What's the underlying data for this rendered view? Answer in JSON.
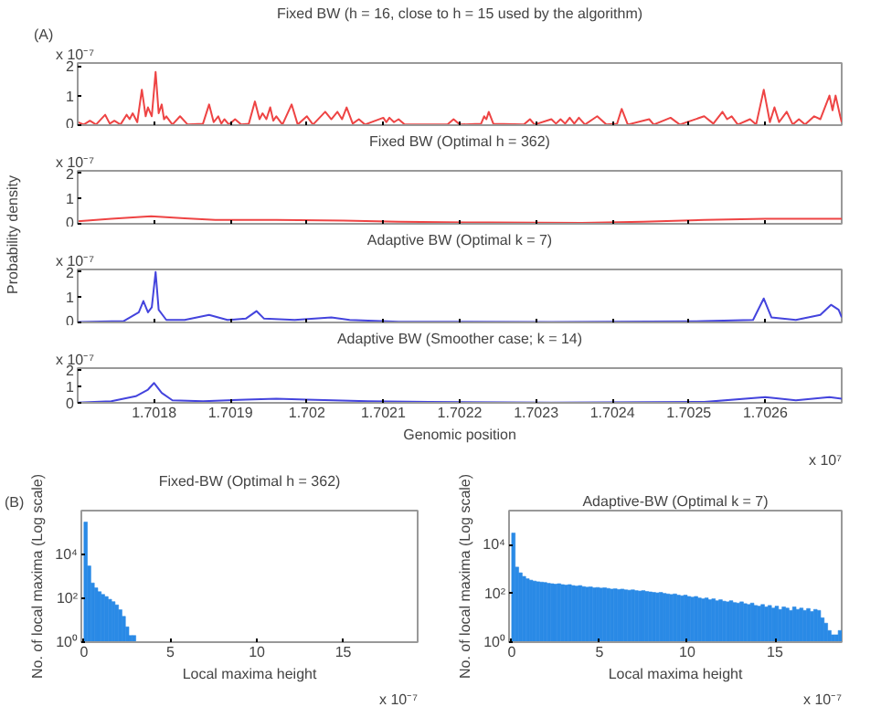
{
  "chart_data": [
    {
      "type": "line",
      "title": "Fixed BW (h = 16, close to h = 15 used by the algorithm)",
      "annotations": [
        "x 10⁻⁷",
        "(A)"
      ],
      "xlim": [
        1.7017,
        1.7027
      ],
      "xticks": [
        1.7018,
        1.7019,
        1.702,
        1.7021,
        1.7022,
        1.7023,
        1.7024,
        1.7025,
        1.7026
      ],
      "ylim": [
        0,
        2.1
      ],
      "yticks": [
        0,
        1,
        2
      ],
      "tick_labels": "y",
      "grid": false,
      "x": [
        1.7017,
        1.701708,
        1.701716,
        1.701724,
        1.701736,
        1.701742,
        1.701748,
        1.701756,
        1.701764,
        1.701768,
        1.701772,
        1.701778,
        1.701784,
        1.701789,
        1.701792,
        1.701797,
        1.701802,
        1.701806,
        1.70181,
        1.701813,
        1.701816,
        1.701824,
        1.701834,
        1.701844,
        1.701864,
        1.701872,
        1.701878,
        1.701884,
        1.701888,
        1.701892,
        1.701898,
        1.701906,
        1.701914,
        1.701924,
        1.701932,
        1.701938,
        1.701942,
        1.701947,
        1.701952,
        1.701956,
        1.70196,
        1.701968,
        1.70198,
        1.701988,
        1.702,
        1.702008,
        1.702024,
        1.702032,
        1.70204,
        1.702046,
        1.702052,
        1.70206,
        1.702068,
        1.702076,
        1.7021,
        1.702104,
        1.702108,
        1.702114,
        1.70212,
        1.702128,
        1.702184,
        1.702192,
        1.7022,
        1.702228,
        1.702232,
        1.702235,
        1.702238,
        1.702244,
        1.702284,
        1.702292,
        1.702298,
        1.70232,
        1.702326,
        1.702332,
        1.702338,
        1.702344,
        1.70235,
        1.702356,
        1.702364,
        1.70238,
        1.702392,
        1.702406,
        1.702412,
        1.70242,
        1.702448,
        1.702454,
        1.702476,
        1.702488,
        1.70252,
        1.702532,
        1.702544,
        1.70255,
        1.702556,
        1.702564,
        1.70258,
        1.702588,
        1.702598,
        1.702606,
        1.702612,
        1.702618,
        1.702628,
        1.702636,
        1.702644,
        1.702652,
        1.702664,
        1.702672,
        1.702684,
        1.702688,
        1.702692,
        1.702698,
        1.7027
      ],
      "series": [
        {
          "color": "#ee4444",
          "values": [
            0.1,
            0.02,
            0.15,
            0.02,
            0.35,
            0.05,
            0.15,
            0.02,
            0.35,
            0.2,
            0.4,
            0.1,
            1.2,
            0.3,
            0.6,
            0.3,
            1.8,
            0.4,
            0.7,
            0.2,
            0.3,
            0.02,
            0.3,
            0.02,
            0.05,
            0.7,
            0.1,
            0.3,
            0.05,
            0.2,
            0.02,
            0.2,
            0.02,
            0.05,
            0.8,
            0.2,
            0.4,
            0.2,
            0.6,
            0.15,
            0.3,
            0.02,
            0.7,
            0.02,
            0.3,
            0.02,
            0.45,
            0.2,
            0.45,
            0.2,
            0.6,
            0.05,
            0.2,
            0.02,
            0.25,
            0.1,
            0.25,
            0.1,
            0.2,
            0.02,
            0.02,
            0.2,
            0.02,
            0.05,
            0.3,
            0.2,
            0.45,
            0.05,
            0.02,
            0.2,
            0.02,
            0.2,
            0.05,
            0.2,
            0.05,
            0.25,
            0.05,
            0.25,
            0.02,
            0.3,
            0.02,
            0.05,
            0.55,
            0.02,
            0.2,
            0.02,
            0.25,
            0.02,
            0.3,
            0.05,
            0.45,
            0.2,
            0.3,
            0.02,
            0.2,
            0.02,
            1.2,
            0.1,
            0.6,
            0.1,
            0.45,
            0.02,
            0.2,
            0.02,
            0.3,
            0.2,
            1.0,
            0.5,
            1.0,
            0.3,
            0.1
          ]
        }
      ]
    },
    {
      "type": "line",
      "title": "Fixed BW (Optimal h = 362)",
      "ylabel": "Probability density",
      "annotations": [
        "x 10⁻⁷"
      ],
      "xlim": [
        1.7017,
        1.7027
      ],
      "xticks": [
        1.7018,
        1.7019,
        1.702,
        1.7021,
        1.7022,
        1.7023,
        1.7024,
        1.7025,
        1.7026
      ],
      "ylim": [
        0,
        2.1
      ],
      "yticks": [
        0,
        1,
        2
      ],
      "tick_labels": "y",
      "grid": false,
      "x": [
        1.7017,
        1.701744,
        1.701796,
        1.70184,
        1.70188,
        1.70196,
        1.702048,
        1.70212,
        1.70224,
        1.70236,
        1.70244,
        1.70252,
        1.7026,
        1.7027
      ],
      "series": [
        {
          "color": "#ee4444",
          "values": [
            0.1,
            0.2,
            0.3,
            0.22,
            0.15,
            0.15,
            0.13,
            0.08,
            0.05,
            0.04,
            0.08,
            0.15,
            0.2,
            0.2
          ]
        }
      ]
    },
    {
      "type": "line",
      "title": "Adaptive BW (Optimal k = 7)",
      "annotations": [
        "x 10⁻⁷"
      ],
      "xlim": [
        1.7017,
        1.7027
      ],
      "xticks": [
        1.7018,
        1.7019,
        1.702,
        1.7021,
        1.7022,
        1.7023,
        1.7024,
        1.7025,
        1.7026
      ],
      "ylim": [
        0,
        2.1
      ],
      "yticks": [
        0,
        1,
        2
      ],
      "tick_labels": "y",
      "grid": false,
      "x": [
        1.7017,
        1.70176,
        1.70178,
        1.701786,
        1.701792,
        1.701797,
        1.701802,
        1.701806,
        1.701816,
        1.70184,
        1.701872,
        1.701896,
        1.70192,
        1.701934,
        1.701944,
        1.701984,
        1.702032,
        1.702056,
        1.70212,
        1.70232,
        1.70252,
        1.702584,
        1.702598,
        1.702608,
        1.70264,
        1.702672,
        1.702686,
        1.702696,
        1.7027
      ],
      "series": [
        {
          "color": "#4444dd",
          "values": [
            0.02,
            0.05,
            0.4,
            0.85,
            0.4,
            0.6,
            2.0,
            0.5,
            0.1,
            0.1,
            0.3,
            0.1,
            0.15,
            0.45,
            0.15,
            0.1,
            0.2,
            0.1,
            0.03,
            0.02,
            0.05,
            0.1,
            0.95,
            0.2,
            0.1,
            0.3,
            0.7,
            0.5,
            0.2
          ]
        }
      ]
    },
    {
      "type": "line",
      "title": "Adaptive BW (Smoother case; k = 14)",
      "xlabel": "Genomic position",
      "annotations": [
        "x 10⁻⁷",
        "x 10⁷"
      ],
      "xlim": [
        1.7017,
        1.7027
      ],
      "xticks": [
        1.7018,
        1.7019,
        1.702,
        1.7021,
        1.7022,
        1.7023,
        1.7024,
        1.7025,
        1.7026
      ],
      "ylim": [
        0,
        2.1
      ],
      "yticks": [
        0,
        1,
        2
      ],
      "grid": false,
      "x": [
        1.7017,
        1.701744,
        1.701776,
        1.701792,
        1.7018,
        1.70181,
        1.701824,
        1.701864,
        1.70192,
        1.70196,
        1.702,
        1.70208,
        1.70216,
        1.70232,
        1.70252,
        1.7026,
        1.70264,
        1.702684,
        1.7027
      ],
      "series": [
        {
          "color": "#4444dd",
          "values": [
            0.02,
            0.1,
            0.4,
            0.8,
            1.2,
            0.6,
            0.15,
            0.1,
            0.2,
            0.25,
            0.2,
            0.1,
            0.05,
            0.02,
            0.05,
            0.35,
            0.15,
            0.35,
            0.25
          ]
        }
      ]
    },
    {
      "type": "histogram",
      "title": "Fixed-BW (Optimal h = 362)",
      "xlabel": "Local maxima height",
      "ylabel": "No. of local maxima (Log scale)",
      "annotations": [
        "x 10⁻⁷",
        "(B)"
      ],
      "color": "#2a8ae6",
      "log": "y",
      "grid": false,
      "xlim": [
        -0.15,
        19.3
      ],
      "xticks": [
        0,
        5,
        10,
        15
      ],
      "ylim": [
        1,
        1000000
      ],
      "yticks": [
        {
          "value": 1,
          "label": "10⁰"
        },
        {
          "value": 100,
          "label": "10²"
        },
        {
          "value": 10000,
          "label": "10⁴"
        }
      ],
      "bins": [
        0,
        0.2,
        0.4,
        0.6,
        0.8,
        1.0,
        1.2,
        1.4,
        1.6,
        1.8,
        2.0,
        2.2,
        2.4,
        2.6,
        2.8,
        3.0
      ],
      "values": [
        300000,
        3000,
        500,
        300,
        200,
        150,
        120,
        90,
        70,
        50,
        30,
        15,
        5,
        2,
        2
      ]
    },
    {
      "type": "histogram",
      "title": "Adaptive-BW (Optimal k = 7)",
      "xlabel": "Local maxima height",
      "ylabel": "No. of local maxima (Log scale)",
      "annotations": [
        "x 10⁻⁷"
      ],
      "color": "#2a8ae6",
      "log": "y",
      "grid": false,
      "xlim": [
        -0.15,
        18.8
      ],
      "xticks": [
        0,
        5,
        10,
        15
      ],
      "ylim": [
        1,
        250000
      ],
      "yticks": [
        {
          "value": 1,
          "label": "10⁰"
        },
        {
          "value": 100,
          "label": "10²"
        },
        {
          "value": 10000,
          "label": "10⁴"
        }
      ],
      "bins": [
        0,
        0.2,
        0.4,
        0.6,
        0.8,
        1.0,
        1.2,
        1.4,
        1.6,
        1.8,
        2.0,
        2.2,
        2.4,
        2.6,
        2.8,
        3.0,
        3.2,
        3.4,
        3.6,
        3.8,
        4.0,
        4.2,
        4.4,
        4.6,
        4.8,
        5.0,
        5.2,
        5.4,
        5.6,
        5.8,
        6.0,
        6.2,
        6.4,
        6.6,
        6.8,
        7.0,
        7.2,
        7.4,
        7.6,
        7.8,
        8.0,
        8.2,
        8.4,
        8.6,
        8.8,
        9.0,
        9.2,
        9.4,
        9.6,
        9.8,
        10.0,
        10.2,
        10.4,
        10.6,
        10.8,
        11.0,
        11.2,
        11.4,
        11.6,
        11.8,
        12.0,
        12.2,
        12.4,
        12.6,
        12.8,
        13.0,
        13.2,
        13.4,
        13.6,
        13.8,
        14.0,
        14.2,
        14.4,
        14.6,
        14.8,
        15.0,
        15.2,
        15.4,
        15.6,
        15.8,
        16.0,
        16.2,
        16.4,
        16.6,
        16.8,
        17.0,
        17.2,
        17.4,
        17.6,
        17.8,
        18.0,
        18.2,
        18.4,
        18.6,
        18.8
      ],
      "values": [
        30000,
        1200,
        700,
        500,
        400,
        350,
        320,
        300,
        290,
        280,
        260,
        250,
        240,
        250,
        230,
        220,
        230,
        210,
        200,
        210,
        190,
        180,
        185,
        170,
        175,
        165,
        170,
        160,
        150,
        155,
        145,
        150,
        140,
        135,
        140,
        130,
        125,
        130,
        120,
        115,
        110,
        105,
        110,
        100,
        95,
        90,
        95,
        85,
        80,
        85,
        75,
        70,
        75,
        65,
        60,
        65,
        55,
        60,
        50,
        55,
        48,
        45,
        50,
        42,
        40,
        45,
        38,
        35,
        40,
        32,
        30,
        35,
        28,
        32,
        25,
        30,
        22,
        28,
        25,
        20,
        28,
        22,
        25,
        20,
        24,
        18,
        22,
        20,
        10,
        6,
        3,
        2,
        2,
        3
      ]
    }
  ]
}
